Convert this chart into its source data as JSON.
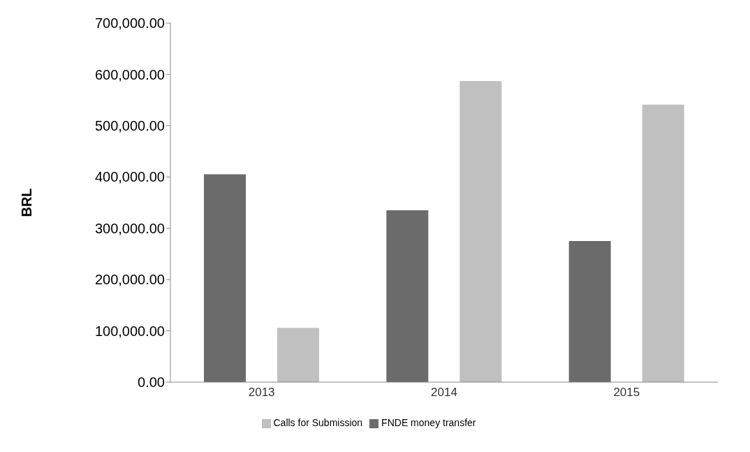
{
  "chart_data": {
    "type": "bar",
    "ylabel": "BRL",
    "categories": [
      "2013",
      "2014",
      "2015"
    ],
    "series": [
      {
        "name": "FNDE money transfer",
        "color": "#6b6b6b",
        "values": [
          405000,
          335000,
          275000
        ]
      },
      {
        "name": "Calls for Submission",
        "color": "#c0c0c0",
        "values": [
          106000,
          587000,
          541000
        ]
      }
    ],
    "ylim": [
      0,
      700000
    ],
    "yticks": [
      {
        "value": 0,
        "label": "0.00"
      },
      {
        "value": 100000,
        "label": "100,000.00"
      },
      {
        "value": 200000,
        "label": "200,000.00"
      },
      {
        "value": 300000,
        "label": "300,000.00"
      },
      {
        "value": 400000,
        "label": "400,000.00"
      },
      {
        "value": 500000,
        "label": "500,000.00"
      },
      {
        "value": 600000,
        "label": "600,000.00"
      },
      {
        "value": 700000,
        "label": "700,000.00"
      }
    ],
    "grid": false,
    "legend": "bottom"
  }
}
